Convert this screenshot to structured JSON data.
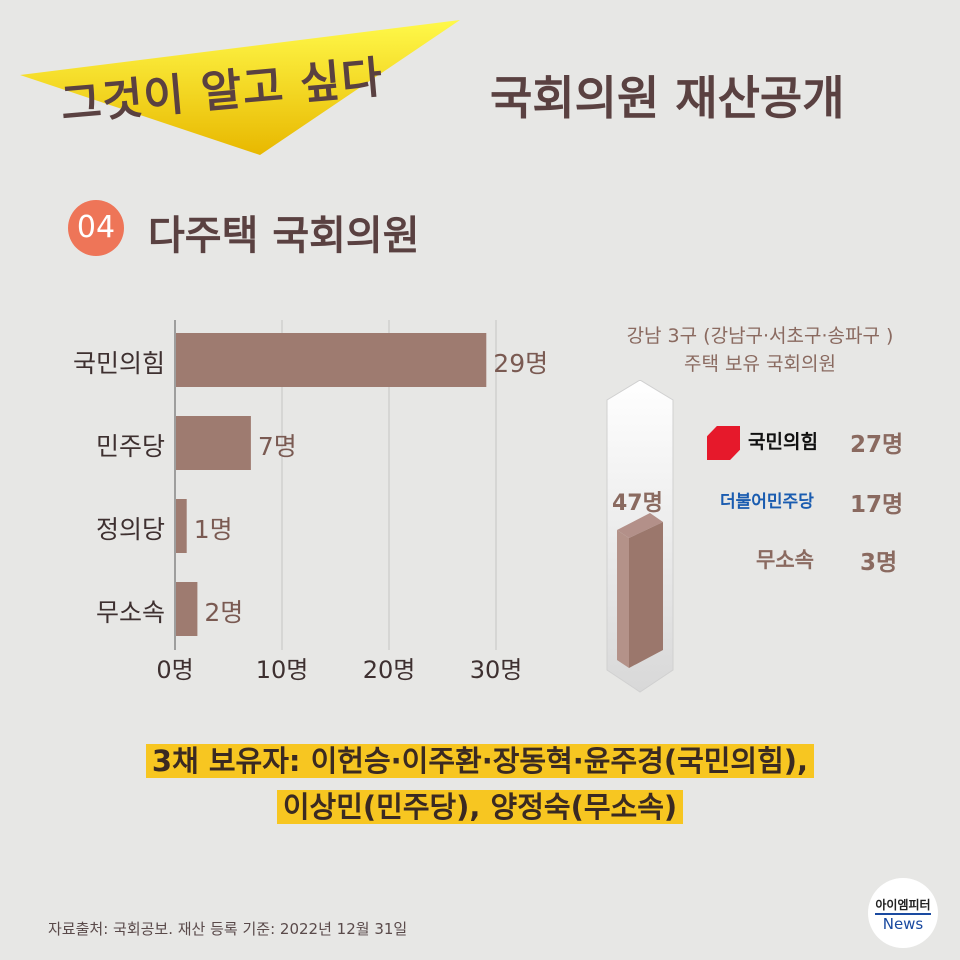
{
  "header": {
    "banner": "그것이 알고 싶다",
    "title": "국회의원 재산공개"
  },
  "section": {
    "number": "04",
    "title": "다주택 국회의원"
  },
  "chart_data": {
    "type": "bar",
    "orientation": "horizontal",
    "categories": [
      "국민의힘",
      "민주당",
      "정의당",
      "무소속"
    ],
    "values": [
      29,
      7,
      1,
      2
    ],
    "data_labels": [
      "29명",
      "7명",
      "1명",
      "2명"
    ],
    "xlim": [
      0,
      30
    ],
    "xticks": [
      "0명",
      "10명",
      "20명",
      "30명"
    ],
    "grid": true,
    "bar_color": "#9e7b70"
  },
  "gangnam": {
    "title_line1": "강남 3구  (강남구·서초구·송파구 )",
    "title_line2": "주택 보유 국회의원",
    "total": "47명",
    "parties": [
      {
        "name": "국민의힘",
        "count": "27명",
        "color": "#e6192b"
      },
      {
        "name": "더불어민주당",
        "count": "17명",
        "color": "#1a5cb0"
      },
      {
        "name": "무소속",
        "count": "3명",
        "color": "#8a6a60"
      }
    ]
  },
  "note": {
    "line1": "3채 보유자: 이헌승·이주환·장동혁·윤주경(국민의힘),",
    "line2": "이상민(민주당), 양정숙(무소속)"
  },
  "footer": {
    "source": "자료출처: 국회공보. 재산 등록 기준: 2022년 12월 31일",
    "logo_top": "아이엠피터",
    "logo_bottom": "News"
  }
}
